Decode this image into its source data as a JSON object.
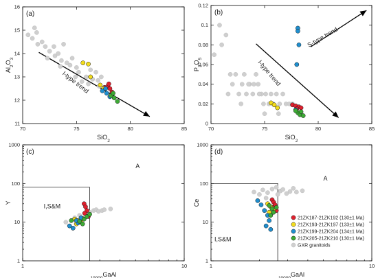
{
  "legend": [
    {
      "label": "21ZK187-21ZK192 (130±1 Ma)",
      "color": "#e0202e"
    },
    {
      "label": "21ZK193-21ZK197 (133±1 Ma)",
      "color": "#f2dc1d"
    },
    {
      "label": "21ZK199-21ZK204 (134±1 Ma)",
      "color": "#1f8fcf"
    },
    {
      "label": "21ZK205-21ZK210 (130±1 Ma)",
      "color": "#3daa35"
    },
    {
      "label": "GXR granitoids",
      "color": "#cfcfcf"
    }
  ],
  "chart_data": [
    {
      "type": "scatter",
      "panel": "(a)",
      "xlabel": "SiO2",
      "ylabel": "Al2O3",
      "xlim": [
        70,
        85
      ],
      "ylim": [
        11,
        16
      ],
      "xticks": [
        70,
        75,
        80,
        85
      ],
      "yticks": [
        11,
        12,
        13,
        14,
        15,
        16
      ],
      "scale": "linear",
      "annotations": [
        {
          "text": "I-type trend",
          "x": 74.8,
          "y": 12.7,
          "rotate": 38
        }
      ],
      "arrows": [
        {
          "x1": 71.5,
          "y1": 14.05,
          "x2": 81.8,
          "y2": 11.3
        }
      ],
      "series": [
        {
          "name": "21ZK187-21ZK192 (130±1 Ma)",
          "color": "#e0202e",
          "x": [
            77.6,
            77.9,
            78.1,
            78.0,
            78.3
          ],
          "y": [
            12.55,
            12.6,
            12.5,
            12.7,
            12.35
          ]
        },
        {
          "name": "21ZK193-21ZK197 (133±1 Ma)",
          "color": "#f2dc1d",
          "x": [
            75.6,
            76.1,
            76.3,
            77.2,
            77.5
          ],
          "y": [
            13.6,
            13.55,
            13.0,
            12.65,
            12.5
          ]
        },
        {
          "name": "21ZK199-21ZK204 (134±1 Ma)",
          "color": "#1f8fcf",
          "x": [
            77.4,
            77.8,
            78.1,
            77.7
          ],
          "y": [
            12.4,
            12.3,
            12.15,
            12.5
          ]
        },
        {
          "name": "21ZK205-21ZK210 (130±1 Ma)",
          "color": "#3daa35",
          "x": [
            78.2,
            78.5,
            78.8,
            78.4
          ],
          "y": [
            12.2,
            12.1,
            11.95,
            12.3
          ]
        },
        {
          "name": "GXR granitoids",
          "color": "#cfcfcf",
          "x": [
            70.5,
            70.9,
            71.1,
            71.3,
            71.4,
            71.8,
            72.1,
            72.5,
            72.9,
            73.0,
            73.3,
            73.6,
            73.8,
            74.1,
            74.4,
            74.6,
            74.9,
            75.2,
            75.5,
            75.9,
            76.1,
            76.5,
            76.8,
            77.1,
            77.0,
            77.3,
            72.3,
            73.5,
            75.0,
            76.3
          ],
          "y": [
            14.8,
            14.65,
            15.1,
            14.9,
            14.4,
            14.5,
            14.3,
            14.1,
            14.3,
            13.9,
            14.0,
            13.7,
            14.4,
            13.6,
            13.5,
            13.8,
            13.0,
            13.2,
            12.8,
            13.0,
            12.7,
            12.9,
            13.2,
            12.6,
            12.85,
            13.0,
            13.8,
            13.45,
            13.4,
            13.3
          ]
        }
      ]
    },
    {
      "type": "scatter",
      "panel": "(b)",
      "xlabel": "SiO2",
      "ylabel": "P2O5",
      "xlim": [
        70,
        85
      ],
      "ylim": [
        0,
        0.12
      ],
      "xticks": [
        70,
        75,
        80,
        85
      ],
      "yticks": [
        0,
        0.02,
        0.04,
        0.06,
        0.08,
        0.1,
        0.12
      ],
      "yticklabels": [
        "0",
        "0.02",
        "0.04",
        "0.06",
        "0.08",
        "0.1",
        "0.12"
      ],
      "scale": "linear",
      "annotations": [
        {
          "text": "I-type trend",
          "x": 75.3,
          "y": 0.05,
          "rotate": 50
        },
        {
          "text": "S-type trend",
          "x": 80.5,
          "y": 0.086,
          "rotate": -30
        }
      ],
      "arrows": [
        {
          "x1": 74.2,
          "y1": 0.081,
          "x2": 81.9,
          "y2": 0.006
        },
        {
          "x1": 79.3,
          "y1": 0.078,
          "x2": 84.5,
          "y2": 0.115
        }
      ],
      "series": [
        {
          "name": "21ZK187-21ZK192 (130±1 Ma)",
          "color": "#e0202e",
          "x": [
            77.6,
            77.9,
            78.2,
            78.4,
            78.0
          ],
          "y": [
            0.019,
            0.018,
            0.017,
            0.016,
            0.015
          ]
        },
        {
          "name": "21ZK193-21ZK197 (133±1 Ma)",
          "color": "#f2dc1d",
          "x": [
            75.6,
            75.9,
            76.2
          ],
          "y": [
            0.021,
            0.019,
            0.016
          ]
        },
        {
          "name": "21ZK199-21ZK204 (134±1 Ma)",
          "color": "#1f8fcf",
          "x": [
            78.1,
            78.1,
            78.2,
            78.0,
            77.9
          ],
          "y": [
            0.097,
            0.094,
            0.08,
            0.06,
            0.014
          ]
        },
        {
          "name": "21ZK205-21ZK210 (130±1 Ma)",
          "color": "#3daa35",
          "x": [
            78.1,
            78.3,
            78.6,
            78.4,
            77.9
          ],
          "y": [
            0.011,
            0.009,
            0.008,
            0.012,
            0.013
          ]
        },
        {
          "name": "GXR granitoids",
          "color": "#cfcfcf",
          "x": [
            70.3,
            70.8,
            71.0,
            71.4,
            71.8,
            72.0,
            72.3,
            72.6,
            72.9,
            73.1,
            73.3,
            73.6,
            73.9,
            74.2,
            74.4,
            74.7,
            74.9,
            75.1,
            75.4,
            75.6,
            75.8,
            76.1,
            76.4,
            76.7,
            77.0,
            77.3,
            71.6,
            72.8,
            74.0,
            75.0,
            76.3,
            77.6,
            73.5,
            74.5
          ],
          "y": [
            0.07,
            0.1,
            0.08,
            0.09,
            0.05,
            0.04,
            0.05,
            0.03,
            0.04,
            0.05,
            0.03,
            0.04,
            0.03,
            0.05,
            0.04,
            0.03,
            0.02,
            0.03,
            0.02,
            0.03,
            0.02,
            0.03,
            0.02,
            0.03,
            0.02,
            0.02,
            0.03,
            0.02,
            0.04,
            0.01,
            0.01,
            0.02,
            0.04,
            0.03
          ]
        }
      ]
    },
    {
      "type": "scatter",
      "panel": "(c)",
      "xlabel": "10000Ga/Al",
      "ylabel": "Y",
      "xlim": [
        1,
        10
      ],
      "ylim": [
        1,
        1000
      ],
      "xticks": [
        1,
        10
      ],
      "yticks": [
        1,
        10,
        100,
        1000
      ],
      "scale": "log-log",
      "field_labels": [
        {
          "text": "A",
          "x": 5.0,
          "y": 250
        },
        {
          "text": "I,S&M",
          "x": 1.35,
          "y": 23
        }
      ],
      "field_box": {
        "x": [
          1,
          2.6
        ],
        "y": [
          1,
          80
        ]
      },
      "series": [
        {
          "name": "21ZK187-21ZK192 (130±1 Ma)",
          "color": "#e0202e",
          "x": [
            2.4,
            2.45,
            2.5,
            2.42,
            2.55
          ],
          "y": [
            30,
            25,
            20,
            17,
            14
          ]
        },
        {
          "name": "21ZK193-21ZK197 (133±1 Ma)",
          "color": "#f2dc1d",
          "x": [
            2.1,
            2.2,
            2.3,
            2.35,
            2.15
          ],
          "y": [
            12,
            11,
            10,
            12.5,
            9
          ]
        },
        {
          "name": "21ZK199-21ZK204 (134±1 Ma)",
          "color": "#1f8fcf",
          "x": [
            1.95,
            2.05,
            2.2,
            2.3,
            2.15
          ],
          "y": [
            8,
            7,
            9.5,
            13,
            11
          ]
        },
        {
          "name": "21ZK205-21ZK210 (130±1 Ma)",
          "color": "#3daa35",
          "x": [
            2.0,
            2.25,
            2.4,
            2.5,
            2.6,
            2.35
          ],
          "y": [
            11,
            10.5,
            12,
            14,
            16,
            9
          ]
        },
        {
          "name": "GXR granitoids",
          "color": "#cfcfcf",
          "x": [
            1.85,
            2.1,
            2.25,
            2.6,
            2.75,
            2.85,
            2.95,
            3.1,
            3.2,
            3.5,
            2.45
          ],
          "y": [
            10,
            13,
            15,
            18,
            20,
            21,
            19,
            20,
            21,
            22,
            16
          ]
        }
      ]
    },
    {
      "type": "scatter",
      "panel": "(d)",
      "xlabel": "10000Ga/Al",
      "ylabel": "Ce",
      "xlim": [
        1,
        10
      ],
      "ylim": [
        1,
        1000
      ],
      "xticks": [
        1,
        10
      ],
      "yticks": [
        1,
        10,
        100,
        1000
      ],
      "scale": "log-log",
      "field_labels": [
        {
          "text": "A",
          "x": 5.0,
          "y": 120
        },
        {
          "text": "I,S&M",
          "x": 1.05,
          "y": 3.2
        }
      ],
      "field_box": {
        "x": [
          1,
          2.6
        ],
        "y": [
          1,
          100
        ]
      },
      "series": [
        {
          "name": "21ZK187-21ZK192 (130±1 Ma)",
          "color": "#e0202e",
          "x": [
            2.4,
            2.45,
            2.5,
            2.42,
            2.55
          ],
          "y": [
            38,
            33,
            28,
            24,
            20
          ]
        },
        {
          "name": "21ZK193-21ZK197 (133±1 Ma)",
          "color": "#f2dc1d",
          "x": [
            2.25,
            2.35,
            2.45,
            2.3
          ],
          "y": [
            30,
            25,
            22,
            18
          ]
        },
        {
          "name": "21ZK199-21ZK204 (134±1 Ma)",
          "color": "#1f8fcf",
          "x": [
            1.95,
            2.05,
            2.15,
            2.25,
            2.3,
            2.2,
            2.35
          ],
          "y": [
            36,
            28,
            20,
            15,
            11,
            8,
            6.5
          ]
        },
        {
          "name": "21ZK205-21ZK210 (130±1 Ma)",
          "color": "#3daa35",
          "x": [
            2.3,
            2.4,
            2.55,
            2.45,
            2.35
          ],
          "y": [
            27,
            22,
            24,
            18,
            15
          ]
        },
        {
          "name": "GXR granitoids",
          "color": "#cfcfcf",
          "x": [
            1.85,
            2.0,
            2.1,
            2.25,
            2.4,
            2.55,
            2.7,
            2.8,
            2.95,
            3.1,
            3.25,
            3.4,
            3.7,
            2.6,
            2.2
          ],
          "y": [
            60,
            52,
            68,
            58,
            72,
            80,
            64,
            70,
            55,
            62,
            75,
            60,
            65,
            52,
            42
          ]
        }
      ]
    }
  ]
}
